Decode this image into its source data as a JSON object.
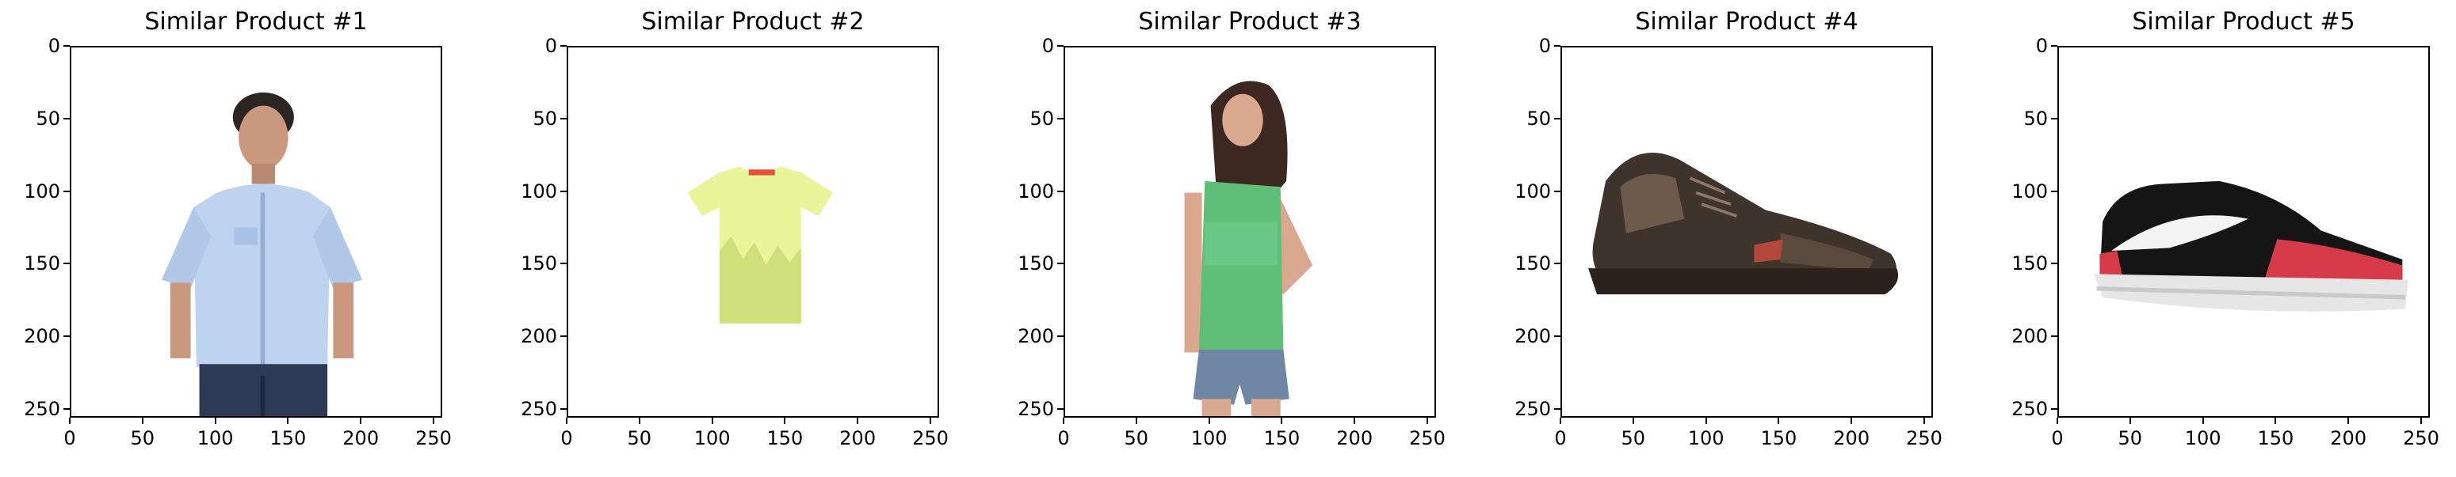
{
  "chart_data": [
    {
      "type": "image",
      "title": "Similar Product #1",
      "image": "man-light-blue-shirt-jeans",
      "xticks": [
        0,
        50,
        100,
        150,
        200,
        250
      ],
      "yticks": [
        0,
        50,
        100,
        150,
        200,
        250
      ],
      "xlim": [
        0,
        256
      ],
      "ylim": [
        256,
        0
      ],
      "colors": {
        "skin": "#c9987e",
        "hair": "#2b2522",
        "shirt": "#bed3ef",
        "shirt_shade": "#93aed3",
        "jeans": "#2e3a55"
      }
    },
    {
      "type": "image",
      "title": "Similar Product #2",
      "image": "yellow-printed-tshirt",
      "xticks": [
        0,
        50,
        100,
        150,
        200,
        250
      ],
      "yticks": [
        0,
        50,
        100,
        150,
        200,
        250
      ],
      "xlim": [
        0,
        256
      ],
      "ylim": [
        256,
        0
      ],
      "colors": {
        "tee": "#eaf59b",
        "print": "#cfe07a",
        "collar": "#e8503c"
      }
    },
    {
      "type": "image",
      "title": "Similar Product #3",
      "image": "woman-green-tank-denim-shorts",
      "xticks": [
        0,
        50,
        100,
        150,
        200,
        250
      ],
      "yticks": [
        0,
        50,
        100,
        150,
        200,
        250
      ],
      "xlim": [
        0,
        256
      ],
      "ylim": [
        256,
        0
      ],
      "colors": {
        "skin": "#d9a88f",
        "hair": "#3d2721",
        "top": "#5fbf79",
        "shorts": "#6f87a5"
      }
    },
    {
      "type": "image",
      "title": "Similar Product #4",
      "image": "dark-brown-leather-shoe",
      "xticks": [
        0,
        50,
        100,
        150,
        200,
        250
      ],
      "yticks": [
        0,
        50,
        100,
        150,
        200,
        250
      ],
      "xlim": [
        0,
        256
      ],
      "ylim": [
        256,
        0
      ],
      "colors": {
        "leather": "#3f342c",
        "leather_light": "#6e5a4a",
        "sole": "#2a221d",
        "accent": "#b3473b"
      }
    },
    {
      "type": "image",
      "title": "Similar Product #5",
      "image": "black-red-canvas-sneaker",
      "xticks": [
        0,
        50,
        100,
        150,
        200,
        250
      ],
      "yticks": [
        0,
        50,
        100,
        150,
        200,
        250
      ],
      "xlim": [
        0,
        256
      ],
      "ylim": [
        256,
        0
      ],
      "colors": {
        "upper": "#151515",
        "stripe": "#f4f4f4",
        "toe": "#d73a48",
        "sole": "#e6e6e6"
      }
    }
  ]
}
